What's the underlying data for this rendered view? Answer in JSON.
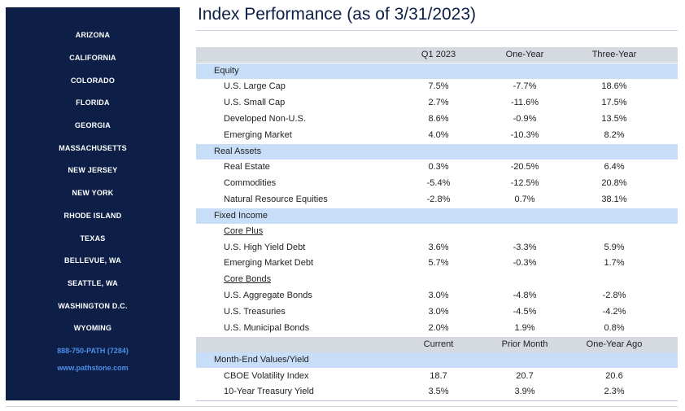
{
  "sidebar": {
    "locations": [
      "ARIZONA",
      "CALIFORNIA",
      "COLORADO",
      "FLORIDA",
      "GEORGIA",
      "MASSACHUSETTS",
      "NEW JERSEY",
      "NEW YORK",
      "RHODE ISLAND",
      "TEXAS",
      "BELLEVUE, WA",
      "SEATTLE, WA",
      "WASHINGTON D.C.",
      "WYOMING"
    ],
    "phone": "888-750-PATH (7284)",
    "website": "www.pathstone.com"
  },
  "title": "Index Performance (as of 3/31/2023)",
  "performance": {
    "headers": [
      "Q1 2023",
      "One-Year",
      "Three-Year"
    ],
    "equity": {
      "label": "Equity",
      "rows": [
        {
          "name": "U.S. Large Cap",
          "q1": "7.5%",
          "one": "-7.7%",
          "three": "18.6%"
        },
        {
          "name": "U.S. Small Cap",
          "q1": "2.7%",
          "one": "-11.6%",
          "three": "17.5%"
        },
        {
          "name": "Developed Non-U.S.",
          "q1": "8.6%",
          "one": "-0.9%",
          "three": "13.5%"
        },
        {
          "name": "Emerging Market",
          "q1": "4.0%",
          "one": "-10.3%",
          "three": "8.2%"
        }
      ]
    },
    "real_assets": {
      "label": "Real Assets",
      "rows": [
        {
          "name": "Real Estate",
          "q1": "0.3%",
          "one": "-20.5%",
          "three": "6.4%"
        },
        {
          "name": "Commodities",
          "q1": "-5.4%",
          "one": "-12.5%",
          "three": "20.8%"
        },
        {
          "name": "Natural Resource Equities",
          "q1": "-2.8%",
          "one": "0.7%",
          "three": "38.1%"
        }
      ]
    },
    "fixed_income": {
      "label": "Fixed Income",
      "core_plus": {
        "label": "Core Plus",
        "rows": [
          {
            "name": "U.S. High Yield Debt",
            "q1": "3.6%",
            "one": "-3.3%",
            "three": "5.9%"
          },
          {
            "name": "Emerging Market Debt",
            "q1": "5.7%",
            "one": "-0.3%",
            "three": "1.7%"
          }
        ]
      },
      "core_bonds": {
        "label": "Core Bonds",
        "rows": [
          {
            "name": "U.S. Aggregate Bonds",
            "q1": "3.0%",
            "one": "-4.8%",
            "three": "-2.8%"
          },
          {
            "name": "U.S. Treasuries",
            "q1": "3.0%",
            "one": "-4.5%",
            "three": "-4.2%"
          },
          {
            "name": "U.S. Municipal Bonds",
            "q1": "2.0%",
            "one": "1.9%",
            "three": "0.8%"
          }
        ]
      }
    }
  },
  "month_end": {
    "headers": [
      "Current",
      "Prior Month",
      "One-Year Ago"
    ],
    "label": "Month-End Values/Yield",
    "rows": [
      {
        "name": "CBOE Volatility Index",
        "current": "18.7",
        "prior": "20.7",
        "year_ago": "20.6"
      },
      {
        "name": "10-Year Treasury Yield",
        "current": "3.5%",
        "prior": "3.9%",
        "year_ago": "2.3%"
      }
    ]
  }
}
